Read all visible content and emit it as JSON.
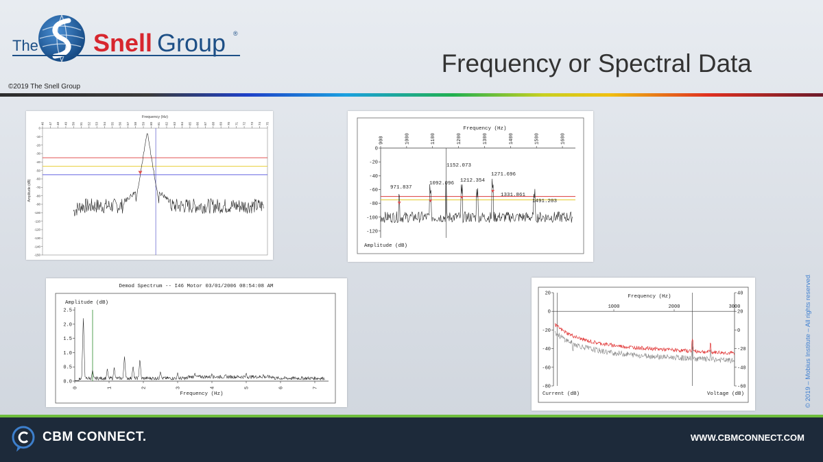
{
  "header": {
    "logo_the": "The",
    "logo_snell": "Snell",
    "logo_group": "Group",
    "logo_reg": "®",
    "copyright": "©2019 The Snell Group",
    "title": "Frequency or Spectral Data"
  },
  "colors": {
    "brand_blue": "#1d4f86",
    "brand_red": "#d7262e",
    "footer_bg": "#1d2a3a",
    "footer_accent": "#6dbd3c"
  },
  "side_note": "© 2019 – Mobius Institute – All rights reserved.",
  "footer": {
    "brand": "CBM CONNECT.",
    "url": "WWW.CBMCONNECT.COM"
  },
  "chart_data": [
    {
      "type": "line",
      "xlabel": "Frequency (Hz)",
      "ylabel": "Amplitude (dB)",
      "x_ticks": [
        "46",
        "47",
        "48",
        "49",
        "50",
        "51",
        "52",
        "53",
        "54",
        "55",
        "56",
        "57",
        "58",
        "59",
        "60",
        "61",
        "62",
        "63",
        "64",
        "65",
        "66",
        "67",
        "68",
        "69",
        "70",
        "71",
        "72",
        "73",
        "74",
        "75"
      ],
      "y_ticks": [
        "0",
        "-10",
        "-20",
        "-30",
        "-40",
        "-50",
        "-60",
        "-70",
        "-80",
        "-90",
        "-100",
        "-110",
        "-120",
        "-130",
        "-140",
        "-150"
      ],
      "ylim": [
        -150,
        0
      ],
      "xlim": [
        46,
        75
      ],
      "peak": {
        "x": 59.5,
        "y": -5
      },
      "threshold_lines": [
        {
          "color": "#e05050",
          "y": -35
        },
        {
          "color": "#e8d040",
          "y": -45
        },
        {
          "color": "#6060e0",
          "y": -55
        }
      ],
      "cursor_x": 60.6
    },
    {
      "type": "line",
      "xlabel": "Frequency (Hz)",
      "ylabel": "Amplitude (dB)",
      "x_ticks": [
        "900",
        "1000",
        "1100",
        "1200",
        "1300",
        "1400",
        "1500",
        "1600"
      ],
      "y_ticks": [
        "0",
        "-20",
        "-40",
        "-60",
        "-80",
        "-100",
        "-120"
      ],
      "ylim": [
        -130,
        0
      ],
      "xlim": [
        900,
        1650
      ],
      "peak_labels": [
        "971.837",
        "1092.096",
        "1152.073",
        "1212.354",
        "1331.861",
        "1271.696",
        "1491.203"
      ],
      "threshold_lines": [
        {
          "color": "#e05050",
          "y": -70
        },
        {
          "color": "#e8d040",
          "y": -75
        }
      ]
    },
    {
      "type": "line",
      "title": "Demod Spectrum -- I46 Motor  03/01/2006 08:54:08 AM",
      "xlabel": "Frequency (Hz)",
      "ylabel": "Amplitude (dB)",
      "x_ticks": [
        "0",
        "1",
        "2",
        "3",
        "4",
        "5",
        "6",
        "7"
      ],
      "y_ticks": [
        "2.5",
        "2.0",
        "1.5",
        "1.0",
        "0.5",
        "0.0"
      ],
      "ylim": [
        0,
        2.6
      ],
      "xlim": [
        0,
        7.4
      ]
    },
    {
      "type": "line",
      "xlabel": "Frequency (Hz)",
      "ylabel": "Current (dB)",
      "y2label": "Voltage (dB)",
      "x_ticks": [
        "1000",
        "2000",
        "3000"
      ],
      "y_ticks": [
        "20",
        "0",
        "-20",
        "-40",
        "-60",
        "-80"
      ],
      "y2_ticks": [
        "40",
        "20",
        "0",
        "-20",
        "-40",
        "-60"
      ],
      "series": [
        {
          "name": "",
          "color": "#e03030"
        },
        {
          "name": "",
          "color": "#808080"
        }
      ]
    }
  ]
}
